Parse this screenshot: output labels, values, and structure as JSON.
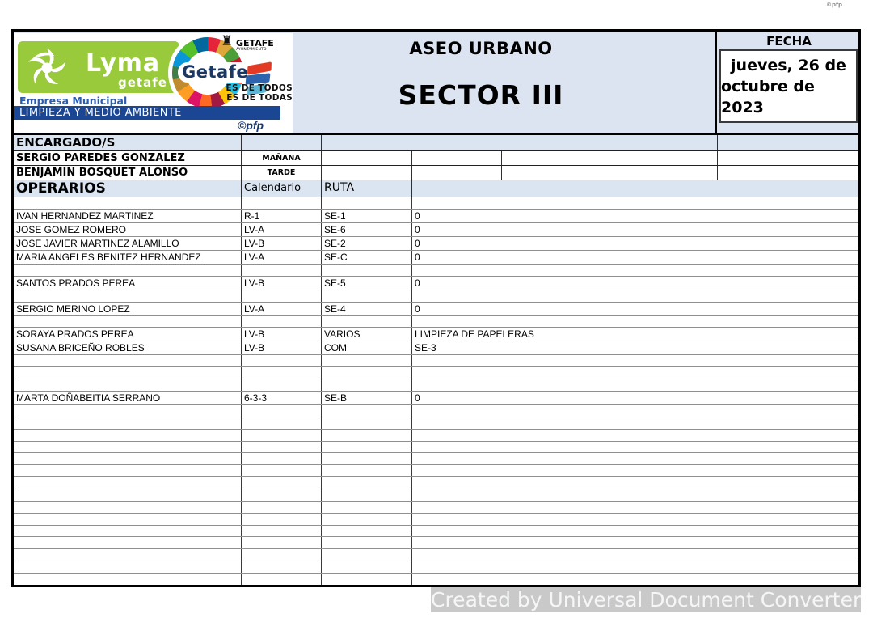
{
  "page": {
    "corner_mark": "©pfp",
    "footer_watermark": "Created by Universal Document Converter"
  },
  "header": {
    "title_line1": "ASEO URBANO",
    "title_line2": "SECTOR III",
    "fecha_label": "FECHA",
    "fecha_line1": "jueves, 26 de",
    "fecha_line2": "octubre de 2023",
    "logo": {
      "lyma_brand": "Lyma",
      "lyma_sub": "getafe",
      "getafe_brand": "Getafe",
      "crest_title": "GETAFE",
      "crest_sub": "AYUNTAMIENTO",
      "slogan_line1": "ES DE TODOS",
      "slogan_line2": "ES DE TODAS",
      "empresa": "Empresa Municipal",
      "bar_text": "LIMPIEZA Y MEDIO AMBIENTE",
      "pfp_mark": "©pfp"
    }
  },
  "encargados": {
    "section_label": "ENCARGADO/S",
    "rows": [
      {
        "name": "SERGIO PAREDES GONZALEZ",
        "shift": "MAÑANA",
        "c1": "",
        "c2": "",
        "c3": "",
        "c4": ""
      },
      {
        "name": "BENJAMIN BOSQUET ALONSO",
        "shift": "TARDE",
        "c1": "",
        "c2": "",
        "c3": "",
        "c4": ""
      }
    ]
  },
  "operarios": {
    "section_label": "OPERARIOS",
    "col_calendario": "Calendario",
    "col_ruta": "RUTA",
    "rows": [
      {
        "name": "",
        "calendario": "",
        "ruta": "",
        "detalle": ""
      },
      {
        "name": "IVAN HERNANDEZ MARTINEZ",
        "calendario": "R-1",
        "ruta": "SE-1",
        "detalle": "0"
      },
      {
        "name": "JOSE GOMEZ ROMERO",
        "calendario": "LV-A",
        "ruta": "SE-6",
        "detalle": "0"
      },
      {
        "name": "JOSE JAVIER MARTINEZ ALAMILLO",
        "calendario": "LV-B",
        "ruta": "SE-2",
        "detalle": "0"
      },
      {
        "name": "MARIA ANGELES BENITEZ HERNANDEZ",
        "calendario": "LV-A",
        "ruta": "SE-C",
        "detalle": "0"
      },
      {
        "name": "",
        "calendario": "",
        "ruta": "",
        "detalle": ""
      },
      {
        "name": "SANTOS PRADOS PEREA",
        "calendario": "LV-B",
        "ruta": "SE-5",
        "detalle": "0"
      },
      {
        "name": "",
        "calendario": "",
        "ruta": "",
        "detalle": ""
      },
      {
        "name": "SERGIO MERINO LOPEZ",
        "calendario": "LV-A",
        "ruta": "SE-4",
        "detalle": "0"
      },
      {
        "name": "",
        "calendario": "",
        "ruta": "",
        "detalle": ""
      },
      {
        "name": "SORAYA PRADOS PEREA",
        "calendario": "LV-B",
        "ruta": "VARIOS",
        "detalle": "LIMPIEZA DE PAPELERAS"
      },
      {
        "name": "SUSANA BRICEÑO ROBLES",
        "calendario": "LV-B",
        "ruta": "COM",
        "detalle": "SE-3"
      },
      {
        "name": "",
        "calendario": "",
        "ruta": "",
        "detalle": ""
      },
      {
        "name": "",
        "calendario": "",
        "ruta": "",
        "detalle": ""
      },
      {
        "name": "",
        "calendario": "",
        "ruta": "",
        "detalle": ""
      },
      {
        "name": "MARTA DOÑABEITIA SERRANO",
        "calendario": "6-3-3",
        "ruta": "SE-B",
        "detalle": "0"
      },
      {
        "name": "",
        "calendario": "",
        "ruta": "",
        "detalle": ""
      },
      {
        "name": "",
        "calendario": "",
        "ruta": "",
        "detalle": ""
      },
      {
        "name": "",
        "calendario": "",
        "ruta": "",
        "detalle": ""
      },
      {
        "name": "",
        "calendario": "",
        "ruta": "",
        "detalle": ""
      },
      {
        "name": "",
        "calendario": "",
        "ruta": "",
        "detalle": ""
      },
      {
        "name": "",
        "calendario": "",
        "ruta": "",
        "detalle": ""
      },
      {
        "name": "",
        "calendario": "",
        "ruta": "",
        "detalle": ""
      },
      {
        "name": "",
        "calendario": "",
        "ruta": "",
        "detalle": ""
      },
      {
        "name": "",
        "calendario": "",
        "ruta": "",
        "detalle": ""
      },
      {
        "name": "",
        "calendario": "",
        "ruta": "",
        "detalle": ""
      },
      {
        "name": "",
        "calendario": "",
        "ruta": "",
        "detalle": ""
      },
      {
        "name": "",
        "calendario": "",
        "ruta": "",
        "detalle": ""
      },
      {
        "name": "",
        "calendario": "",
        "ruta": "",
        "detalle": ""
      },
      {
        "name": "",
        "calendario": "",
        "ruta": "",
        "detalle": ""
      },
      {
        "name": "",
        "calendario": "",
        "ruta": "",
        "detalle": ""
      }
    ]
  },
  "colors": {
    "band_blue": "#dce4f2",
    "cell_blue": "#dbe5f1",
    "lyma_green": "#98ca3c",
    "navy_bar": "#1b4693",
    "getafe_navy": "#1b3764",
    "watermark_bg": "#c9c9c9"
  }
}
